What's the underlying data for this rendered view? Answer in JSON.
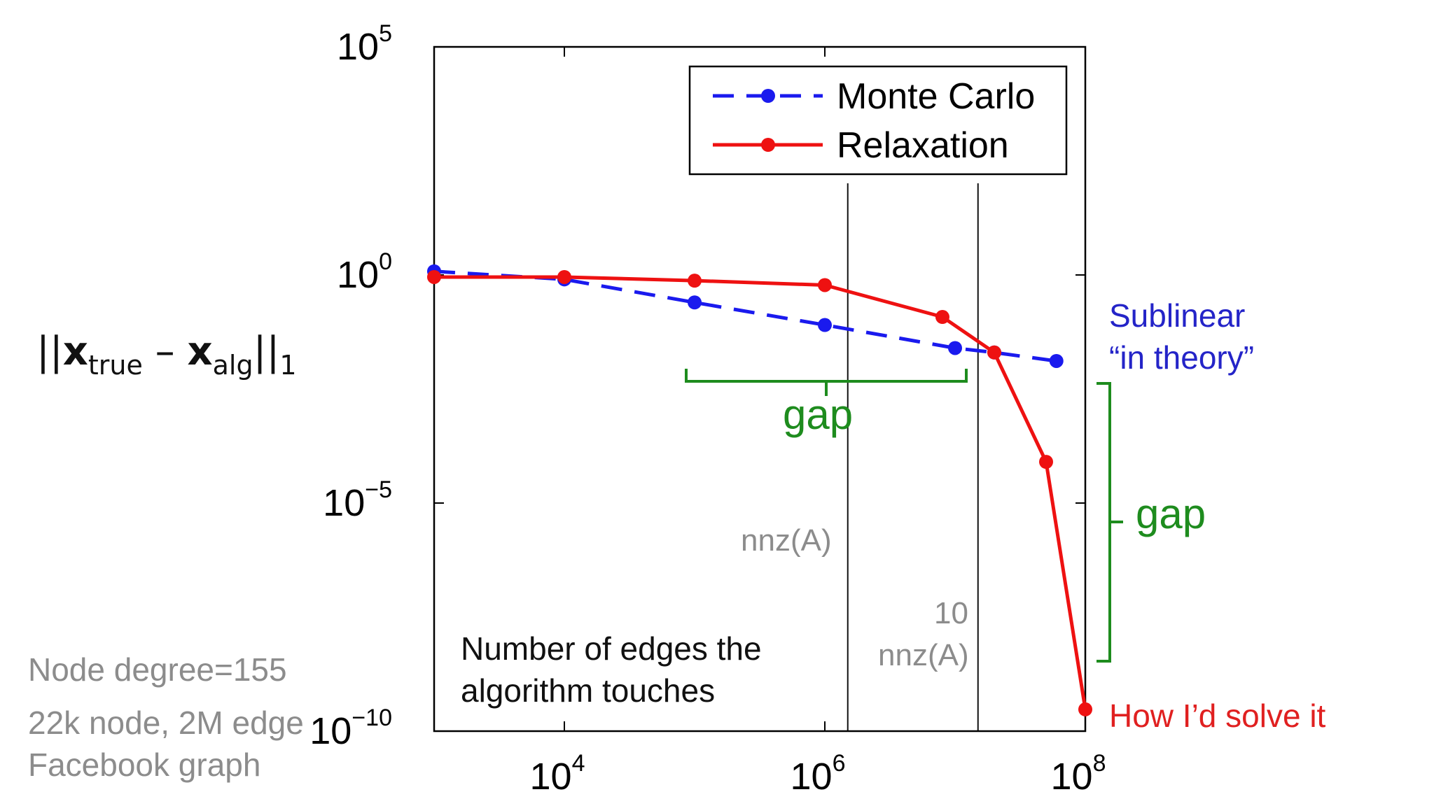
{
  "y_axis_label": {
    "x_symbol": "x",
    "true_subscript": "true",
    "minus": "–",
    "alg_subscript": "alg",
    "norm_subscript": "1"
  },
  "side_notes": {
    "node_degree": "Node degree=155",
    "graph_size": "22k node, 2M edge",
    "graph_name": "Facebook graph"
  },
  "annotations": {
    "x_description_line1": "Number of edges the",
    "x_description_line2": "algorithm touches",
    "nnz_label": "nnz(A)",
    "ten_nnz_line1": "10",
    "ten_nnz_line2": "nnz(A)",
    "gap_top": "gap",
    "gap_right": "gap",
    "sublinear_line1": "Sublinear",
    "sublinear_line2": "“in theory”",
    "how_id_solve": "How I’d solve it"
  },
  "colors": {
    "monte_carlo": "#1a1aee",
    "relaxation": "#ee1111",
    "gap": "#1e8c1e",
    "gray_text": "#8c8c8c",
    "sublinear_text": "#2424c8",
    "solve_text": "#e02020"
  },
  "chart_data": {
    "type": "line",
    "x_scale": "log",
    "y_scale": "log",
    "xlim": [
      1000,
      100000000
    ],
    "ylim": [
      1e-10,
      100000
    ],
    "x_ticks": [
      {
        "value": 10000,
        "base": "10",
        "exp": "4"
      },
      {
        "value": 1000000,
        "base": "10",
        "exp": "6"
      },
      {
        "value": 100000000,
        "base": "10",
        "exp": "8"
      }
    ],
    "y_ticks": [
      {
        "value": 100000,
        "base": "10",
        "exp": "5"
      },
      {
        "value": 1,
        "base": "10",
        "exp": "0"
      },
      {
        "value": 1e-05,
        "base": "10",
        "exp": "−5"
      },
      {
        "value": 1e-10,
        "base": "10",
        "exp": "−10"
      }
    ],
    "vertical_lines": [
      1500000,
      15000000
    ],
    "legend_position": "top-right",
    "series": [
      {
        "name": "Monte Carlo",
        "style": "dashed",
        "color": "#1a1aee",
        "x": [
          1000,
          10000,
          100000,
          1000000,
          10000000,
          20000000,
          60000000
        ],
        "y": [
          1.2,
          0.8,
          0.25,
          0.08,
          0.025,
          0.02,
          0.013
        ]
      },
      {
        "name": "Relaxation",
        "style": "solid",
        "color": "#ee1111",
        "x": [
          1000,
          10000,
          100000,
          1000000,
          8000000,
          20000000,
          50000000,
          100000000
        ],
        "y": [
          0.9,
          0.9,
          0.75,
          0.6,
          0.12,
          0.02,
          8e-05,
          3e-10
        ]
      }
    ]
  }
}
